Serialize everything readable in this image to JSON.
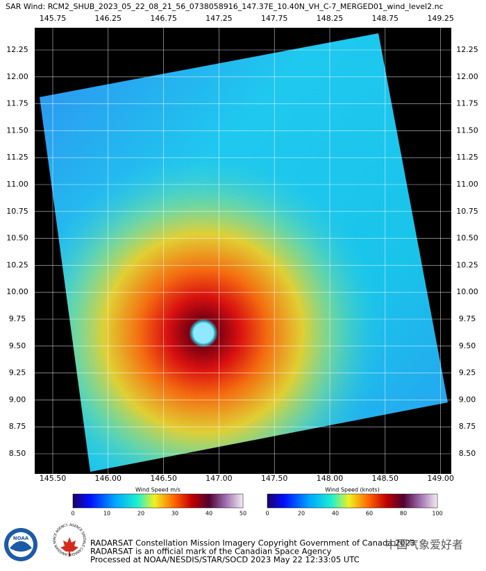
{
  "header": {
    "title": "SAR Wind: RCM2_SHUB_2023_05_22_08_21_56_0738058916_147.37E_10.40N_VH_C-7_MERGED01_wind_level2.nc"
  },
  "map": {
    "top_lon_labels": [
      "145.75",
      "146.25",
      "146.75",
      "147.25",
      "147.75",
      "148.25",
      "148.75",
      "149.25"
    ],
    "bottom_lon_labels": [
      "145.50",
      "146.00",
      "146.50",
      "147.00",
      "147.50",
      "148.00",
      "148.50",
      "149.00"
    ],
    "lat_labels": [
      "12.25",
      "12.00",
      "11.75",
      "11.50",
      "11.25",
      "11.00",
      "10.75",
      "10.50",
      "10.25",
      "10.00",
      "9.75",
      "9.50",
      "9.25",
      "9.00",
      "8.75",
      "8.50"
    ]
  },
  "colorbars": [
    {
      "title": "Wind Speed m/s",
      "ticks": [
        "0",
        "10",
        "20",
        "30",
        "40",
        "50"
      ]
    },
    {
      "title": "Wind Speed (knots)",
      "ticks": [
        "0",
        "20",
        "40",
        "60",
        "80",
        "100"
      ]
    }
  ],
  "logos": {
    "noaa": "NOAA",
    "csa_en": "CANADIAN SPACE AGENCY",
    "csa_fr": "AGENCE SPATIALE CANADIENNE"
  },
  "footer": {
    "lines": [
      "RADARSAT Constellation Mission Imagery Copyright Government of Canada 2023",
      "RADARSAT is an official mark of the Canadian Space Agency",
      "Processed at NOAA/NESDIS/STAR/SOCD 2023 May 22 12:33:05 UTC"
    ]
  },
  "watermark": "中国气象爱好者"
}
